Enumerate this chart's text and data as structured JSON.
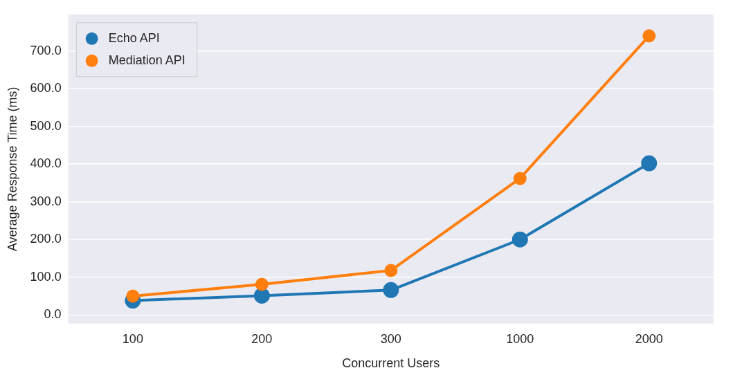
{
  "chart_data": {
    "type": "line",
    "xlabel": "Concurrent Users",
    "ylabel": "Average Response Time (ms)",
    "categories": [
      "100",
      "200",
      "300",
      "1000",
      "2000"
    ],
    "series": [
      {
        "name": "Echo API",
        "color": "#1f77b4",
        "values": [
          38,
          51,
          66,
          200,
          402
        ]
      },
      {
        "name": "Mediation API",
        "color": "#ff7f0e",
        "values": [
          50,
          81,
          118,
          362,
          740
        ]
      }
    ],
    "ylim": [
      -23,
      797
    ],
    "yticks": [
      {
        "value": 0,
        "label": "0.0"
      },
      {
        "value": 100,
        "label": "100.0"
      },
      {
        "value": 200,
        "label": "200.0"
      },
      {
        "value": 300,
        "label": "300.0"
      },
      {
        "value": 400,
        "label": "400.0"
      },
      {
        "value": 500,
        "label": "500.0"
      },
      {
        "value": 600,
        "label": "600.0"
      },
      {
        "value": 700,
        "label": "700.0"
      }
    ],
    "grid": "y",
    "legend": "top left",
    "marker": "circle",
    "line_style": "solid"
  }
}
